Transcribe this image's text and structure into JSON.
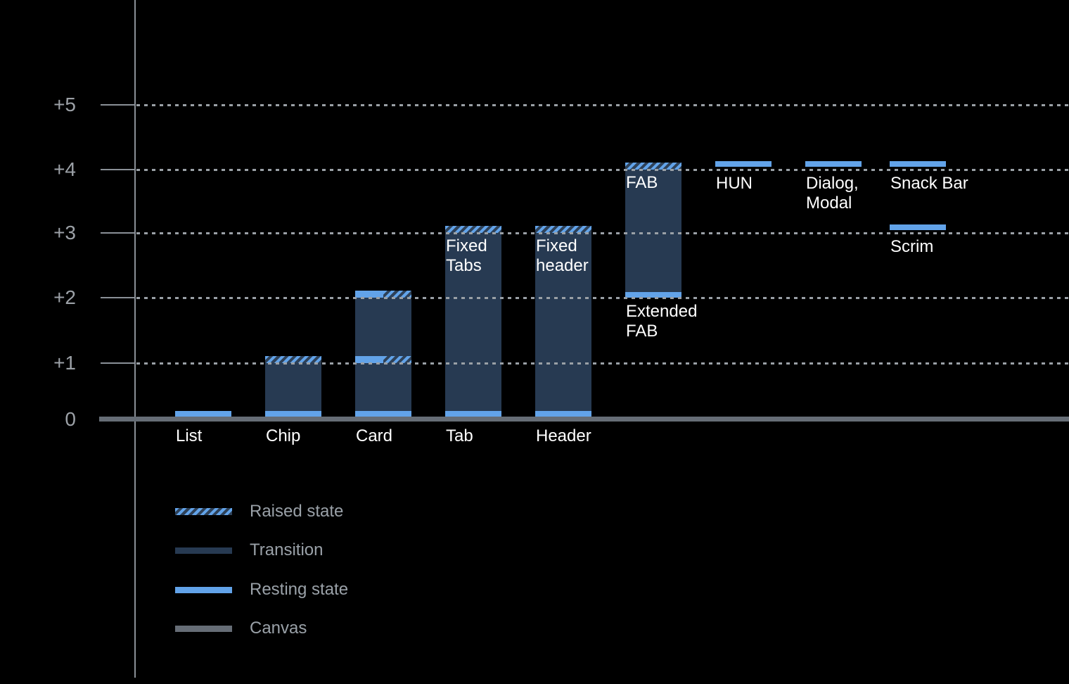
{
  "colors": {
    "background": "#000000",
    "resting_blue": "#62a3e9",
    "transition_navy": "#273a52",
    "hatch_base": "#2e4158",
    "canvas_gray": "#666d76",
    "axis_gray": "#8a9097",
    "grid_dash": "#9aa0a6",
    "tick_label": "#9ca1a7",
    "bar_label": "#ffffff",
    "legend_text": "#9aa1a8"
  },
  "y_axis": {
    "ticks": [
      {
        "label": "+5",
        "level": 5
      },
      {
        "label": "+4",
        "level": 4
      },
      {
        "label": "+3",
        "level": 3
      },
      {
        "label": "+2",
        "level": 2
      },
      {
        "label": "+1",
        "level": 1
      },
      {
        "label": "0",
        "level": 0
      }
    ]
  },
  "chart_data": {
    "type": "bar",
    "title": "",
    "ylim": [
      0,
      5
    ],
    "grid": "dotted-horizontal",
    "legend_position": "bottom-left",
    "categories": [
      "List",
      "Chip",
      "Card",
      "Tab",
      "Header",
      "Extended FAB",
      "HUN",
      "Dialog, Modal",
      "Snack Bar",
      "Scrim"
    ],
    "components": [
      {
        "name": "List",
        "label_lines": [
          "List"
        ],
        "label_pos": "axis",
        "segments": [
          {
            "kind": "resting",
            "level": 0
          }
        ]
      },
      {
        "name": "Chip",
        "label_lines": [
          "Chip"
        ],
        "label_pos": "axis",
        "segments": [
          {
            "kind": "transition",
            "from": 0,
            "to": 1
          },
          {
            "kind": "raised",
            "level": 1
          },
          {
            "kind": "resting",
            "level": 0
          }
        ]
      },
      {
        "name": "Card",
        "label_lines": [
          "Card"
        ],
        "label_pos": "axis",
        "segments": [
          {
            "kind": "transition",
            "from": 0,
            "to": 2
          },
          {
            "kind": "resting+raised",
            "level": 2
          },
          {
            "kind": "resting+raised",
            "level": 1
          },
          {
            "kind": "resting",
            "level": 0
          }
        ]
      },
      {
        "name": "Tab",
        "label_lines": [
          "Tab"
        ],
        "label_pos": "axis",
        "inner_label_lines": [
          "Fixed",
          "Tabs"
        ],
        "segments": [
          {
            "kind": "transition",
            "from": 0,
            "to": 3
          },
          {
            "kind": "raised",
            "level": 3
          },
          {
            "kind": "resting",
            "level": 0
          }
        ]
      },
      {
        "name": "Header",
        "label_lines": [
          "Header"
        ],
        "label_pos": "axis",
        "inner_label_lines": [
          "Fixed",
          "header"
        ],
        "segments": [
          {
            "kind": "transition",
            "from": 0,
            "to": 3
          },
          {
            "kind": "raised",
            "level": 3
          },
          {
            "kind": "resting",
            "level": 0
          }
        ]
      },
      {
        "name": "Extended FAB",
        "label_lines": [
          "Extended",
          "FAB"
        ],
        "label_pos": "below-bar",
        "inner_label_lines": [
          "FAB"
        ],
        "segments": [
          {
            "kind": "transition",
            "from": 2,
            "to": 4
          },
          {
            "kind": "raised",
            "level": 4
          },
          {
            "kind": "resting",
            "level": 2
          }
        ]
      },
      {
        "name": "HUN",
        "label_lines": [
          "HUN"
        ],
        "label_pos": "below-bar",
        "segments": [
          {
            "kind": "resting",
            "level": 4
          }
        ]
      },
      {
        "name": "Dialog, Modal",
        "label_lines": [
          "Dialog,",
          "Modal"
        ],
        "label_pos": "below-bar",
        "segments": [
          {
            "kind": "resting",
            "level": 4
          }
        ]
      },
      {
        "name": "Snack Bar",
        "label_lines": [
          "Snack Bar"
        ],
        "label_pos": "below-bar",
        "segments": [
          {
            "kind": "resting",
            "level": 4
          }
        ]
      },
      {
        "name": "Scrim",
        "label_lines": [
          "Scrim"
        ],
        "label_pos": "below-bar",
        "segments": [
          {
            "kind": "resting",
            "level": 3
          }
        ]
      }
    ],
    "legend": [
      {
        "key": "raised",
        "label": "Raised state"
      },
      {
        "key": "transition",
        "label": "Transition"
      },
      {
        "key": "resting",
        "label": "Resting state"
      },
      {
        "key": "canvas",
        "label": "Canvas"
      }
    ]
  }
}
